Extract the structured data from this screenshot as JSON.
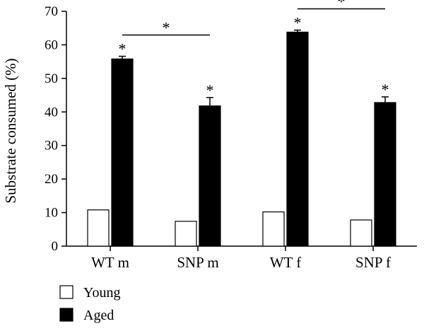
{
  "chart_data": {
    "type": "bar",
    "title": "",
    "xlabel": "",
    "ylabel": "Substrate consumed (%)",
    "ylim": [
      0,
      70
    ],
    "yticks": [
      0,
      10,
      20,
      30,
      40,
      50,
      60,
      70
    ],
    "categories": [
      "WT m",
      "SNP m",
      "WT f",
      "SNP f"
    ],
    "series": [
      {
        "name": "Young",
        "values": [
          10.8,
          7.4,
          10.2,
          7.8
        ],
        "errors": [
          0,
          0,
          0,
          0
        ],
        "color": "#ffffff"
      },
      {
        "name": "Aged",
        "values": [
          55.8,
          41.8,
          63.8,
          42.8
        ],
        "errors": [
          0.8,
          2.5,
          0.6,
          1.7
        ],
        "color": "#000000"
      }
    ],
    "bar_stars": [
      "*",
      "*",
      "*",
      "*"
    ],
    "comparisons": [
      {
        "from": 0,
        "to": 1,
        "label": "*"
      },
      {
        "from": 2,
        "to": 3,
        "label": "*"
      }
    ],
    "legend": {
      "position": "bottom-left",
      "entries": [
        "Young",
        "Aged"
      ]
    },
    "grid": false
  }
}
